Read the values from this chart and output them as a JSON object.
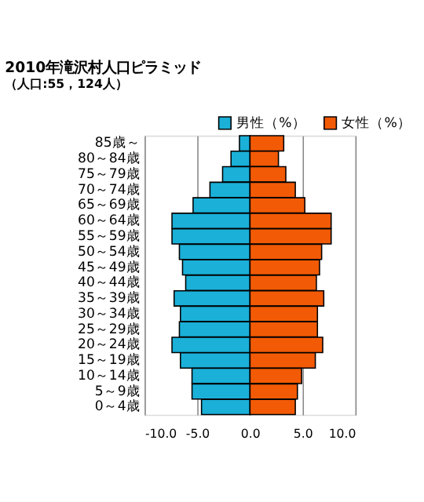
{
  "chart_data": {
    "type": "bar",
    "orientation": "horizontal",
    "stacked": true,
    "title": "2010年滝沢村人口ピラミッド",
    "subtitle": "（人口:55，124人）",
    "categories": [
      "85歳～",
      "80～84歳",
      "75～79歳",
      "70～74歳",
      "65～69歳",
      "60～64歳",
      "55～59歳",
      "50～54歳",
      "45～49歳",
      "40～44歳",
      "35～39歳",
      "30～34歳",
      "25～29歳",
      "20～24歳",
      "15～19歳",
      "10～14歳",
      "5～9歳",
      "0～4歳"
    ],
    "series": [
      {
        "name": "男性（%）",
        "color": "#1ab0d8",
        "values": [
          -1.0,
          -1.8,
          -2.6,
          -3.8,
          -5.4,
          -7.4,
          -7.4,
          -6.7,
          -6.4,
          -6.1,
          -7.2,
          -6.6,
          -6.7,
          -7.4,
          -6.6,
          -5.5,
          -5.5,
          -4.6
        ]
      },
      {
        "name": "女性（%）",
        "color": "#f25a05",
        "values": [
          3.2,
          2.7,
          3.4,
          4.3,
          5.2,
          7.7,
          7.7,
          6.8,
          6.6,
          6.3,
          7.0,
          6.4,
          6.4,
          6.9,
          6.2,
          4.9,
          4.5,
          4.3
        ]
      }
    ],
    "xlim": [
      -10,
      10
    ],
    "xticks": [
      {
        "value": -10,
        "label": "-10.0"
      },
      {
        "value": -5,
        "label": "-5.0"
      },
      {
        "value": 0,
        "label": "0.0"
      },
      {
        "value": 5,
        "label": "5.0"
      },
      {
        "value": 10,
        "label": "10.0"
      }
    ],
    "grid": "x",
    "legend": "top right"
  }
}
